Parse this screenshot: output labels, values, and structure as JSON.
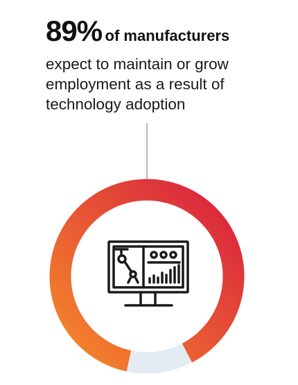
{
  "headline": {
    "stat": "89%",
    "stat_label": "of manufacturers",
    "lines": [
      "expect to maintain or grow",
      "employment as a result of",
      "technology adoption"
    ]
  },
  "chart_data": {
    "type": "pie",
    "style": "donut",
    "slices": [
      {
        "value": 89,
        "color_start": "#f58a2a",
        "color_end": "#d81f3f"
      },
      {
        "value": 11,
        "color": "#e3ebf3"
      }
    ],
    "legend": "none"
  },
  "icon": "computer-monitor-robot-arm-icon",
  "colors": {
    "connector": "#9aa3ab",
    "text": "#111111"
  }
}
